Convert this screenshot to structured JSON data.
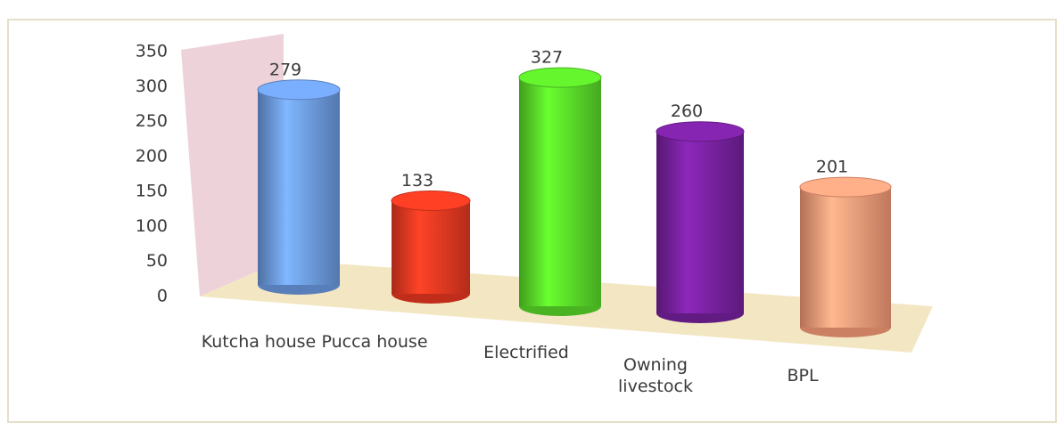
{
  "chart_data": {
    "type": "cylinder",
    "categories": [
      "Kutcha house",
      "Pucca house",
      "Electrified",
      "Owning livestock",
      "BPL"
    ],
    "values": [
      279,
      133,
      327,
      260,
      201
    ],
    "colors": [
      "#6f9fe8",
      "#f03a22",
      "#5ce02a",
      "#7b22a3",
      "#ffa07c"
    ],
    "ylim": [
      0,
      350
    ],
    "yticks": [
      0,
      50,
      100,
      150,
      200,
      250,
      300,
      350
    ]
  }
}
